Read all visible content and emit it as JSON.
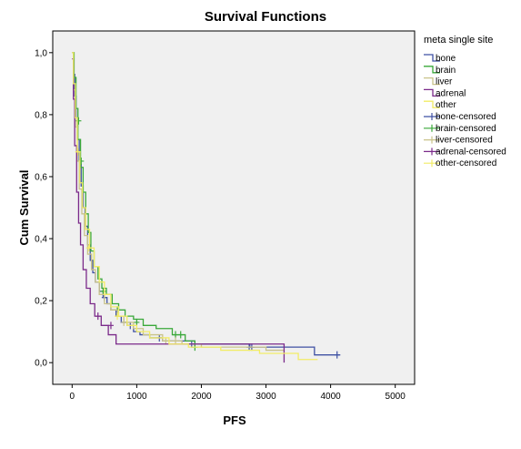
{
  "chart_data": {
    "type": "line",
    "title": "Survival Functions",
    "xlabel": "PFS",
    "ylabel": "Cum Survival",
    "xlim": [
      -300,
      5300
    ],
    "ylim": [
      -0.07,
      1.07
    ],
    "x_ticks": [
      0,
      1000,
      2000,
      3000,
      4000,
      5000
    ],
    "x_tick_labels": [
      "0",
      "1000",
      "2000",
      "3000",
      "4000",
      "5000"
    ],
    "y_ticks": [
      0.0,
      0.2,
      0.4,
      0.6,
      0.8,
      1.0
    ],
    "y_tick_labels": [
      "0,0",
      "0,2",
      "0,4",
      "0,6",
      "0,8",
      "1,0"
    ],
    "grid": false,
    "legend_position": "right",
    "legend_title": "meta single site",
    "background": "#f0f0f0",
    "series": [
      {
        "name": "bone",
        "color": "#3f51a3",
        "step_x": [
          0,
          20,
          40,
          60,
          80,
          110,
          140,
          170,
          200,
          240,
          280,
          320,
          360,
          420,
          480,
          540,
          600,
          680,
          760,
          850,
          950,
          1050,
          1200,
          1400,
          1900,
          2750,
          3750,
          4150
        ],
        "step_y": [
          1.0,
          0.93,
          0.86,
          0.79,
          0.72,
          0.64,
          0.57,
          0.5,
          0.44,
          0.38,
          0.33,
          0.29,
          0.26,
          0.23,
          0.21,
          0.19,
          0.17,
          0.15,
          0.13,
          0.12,
          0.1,
          0.09,
          0.08,
          0.07,
          0.06,
          0.05,
          0.025,
          0.025
        ],
        "censored_x": [
          500,
          700,
          900,
          1350,
          1850,
          2740,
          2780,
          4100
        ],
        "censored_y": [
          0.21,
          0.17,
          0.12,
          0.08,
          0.06,
          0.05,
          0.05,
          0.025
        ]
      },
      {
        "name": "brain",
        "color": "#3aa83a",
        "step_x": [
          0,
          30,
          60,
          90,
          130,
          170,
          210,
          250,
          290,
          340,
          400,
          460,
          530,
          620,
          720,
          820,
          950,
          1100,
          1300,
          1550,
          1750,
          1900
        ],
        "step_y": [
          1.0,
          0.92,
          0.82,
          0.72,
          0.63,
          0.55,
          0.48,
          0.42,
          0.36,
          0.31,
          0.27,
          0.24,
          0.22,
          0.19,
          0.17,
          0.15,
          0.14,
          0.12,
          0.11,
          0.09,
          0.07,
          0.05
        ],
        "censored_x": [
          100,
          140,
          480,
          700,
          1000,
          1600,
          1680,
          1900
        ],
        "censored_y": [
          0.78,
          0.65,
          0.23,
          0.17,
          0.13,
          0.09,
          0.09,
          0.05
        ]
      },
      {
        "name": "liver",
        "color": "#c9c38a",
        "step_x": [
          0,
          20,
          50,
          80,
          110,
          150,
          190,
          240,
          300,
          360,
          420,
          500,
          600,
          700,
          800,
          950,
          1100,
          1400,
          1700,
          2000,
          3000,
          3280
        ],
        "step_y": [
          1.0,
          0.88,
          0.76,
          0.65,
          0.56,
          0.48,
          0.41,
          0.35,
          0.3,
          0.26,
          0.22,
          0.19,
          0.17,
          0.15,
          0.13,
          0.11,
          0.09,
          0.07,
          0.06,
          0.05,
          0.04,
          0.04
        ],
        "censored_x": [
          800,
          1450,
          1600
        ],
        "censored_y": [
          0.13,
          0.07,
          0.07
        ]
      },
      {
        "name": "adrenal",
        "color": "#7b2a8a",
        "step_x": [
          0,
          20,
          40,
          70,
          100,
          130,
          170,
          220,
          280,
          350,
          450,
          560,
          680,
          3280
        ],
        "step_y": [
          0.98,
          0.85,
          0.7,
          0.55,
          0.45,
          0.38,
          0.3,
          0.24,
          0.19,
          0.15,
          0.12,
          0.09,
          0.06,
          0.0
        ],
        "censored_x": [
          400,
          600
        ],
        "censored_y": [
          0.15,
          0.12
        ]
      },
      {
        "name": "other",
        "color": "#f2ec66",
        "step_x": [
          0,
          20,
          50,
          80,
          120,
          160,
          210,
          270,
          340,
          420,
          500,
          600,
          720,
          850,
          1000,
          1200,
          1500,
          1800,
          2300,
          2900,
          3500,
          3800
        ],
        "step_y": [
          1.0,
          0.9,
          0.79,
          0.68,
          0.58,
          0.5,
          0.43,
          0.37,
          0.31,
          0.26,
          0.22,
          0.18,
          0.15,
          0.12,
          0.1,
          0.08,
          0.06,
          0.05,
          0.04,
          0.03,
          0.01,
          0.01
        ],
        "censored_x": [
          90,
          260,
          700
        ],
        "censored_y": [
          0.68,
          0.37,
          0.15
        ]
      }
    ],
    "legend_entries": [
      "bone",
      "brain",
      "liver",
      "adrenal",
      "other",
      "bone-censored",
      "brain-censored",
      "liver-censored",
      "adrenal-censored",
      "other-censored"
    ],
    "legend_colors": [
      "#3f51a3",
      "#3aa83a",
      "#c9c38a",
      "#7b2a8a",
      "#f2ec66",
      "#3f51a3",
      "#3aa83a",
      "#c9c38a",
      "#7b2a8a",
      "#f2ec66"
    ]
  }
}
